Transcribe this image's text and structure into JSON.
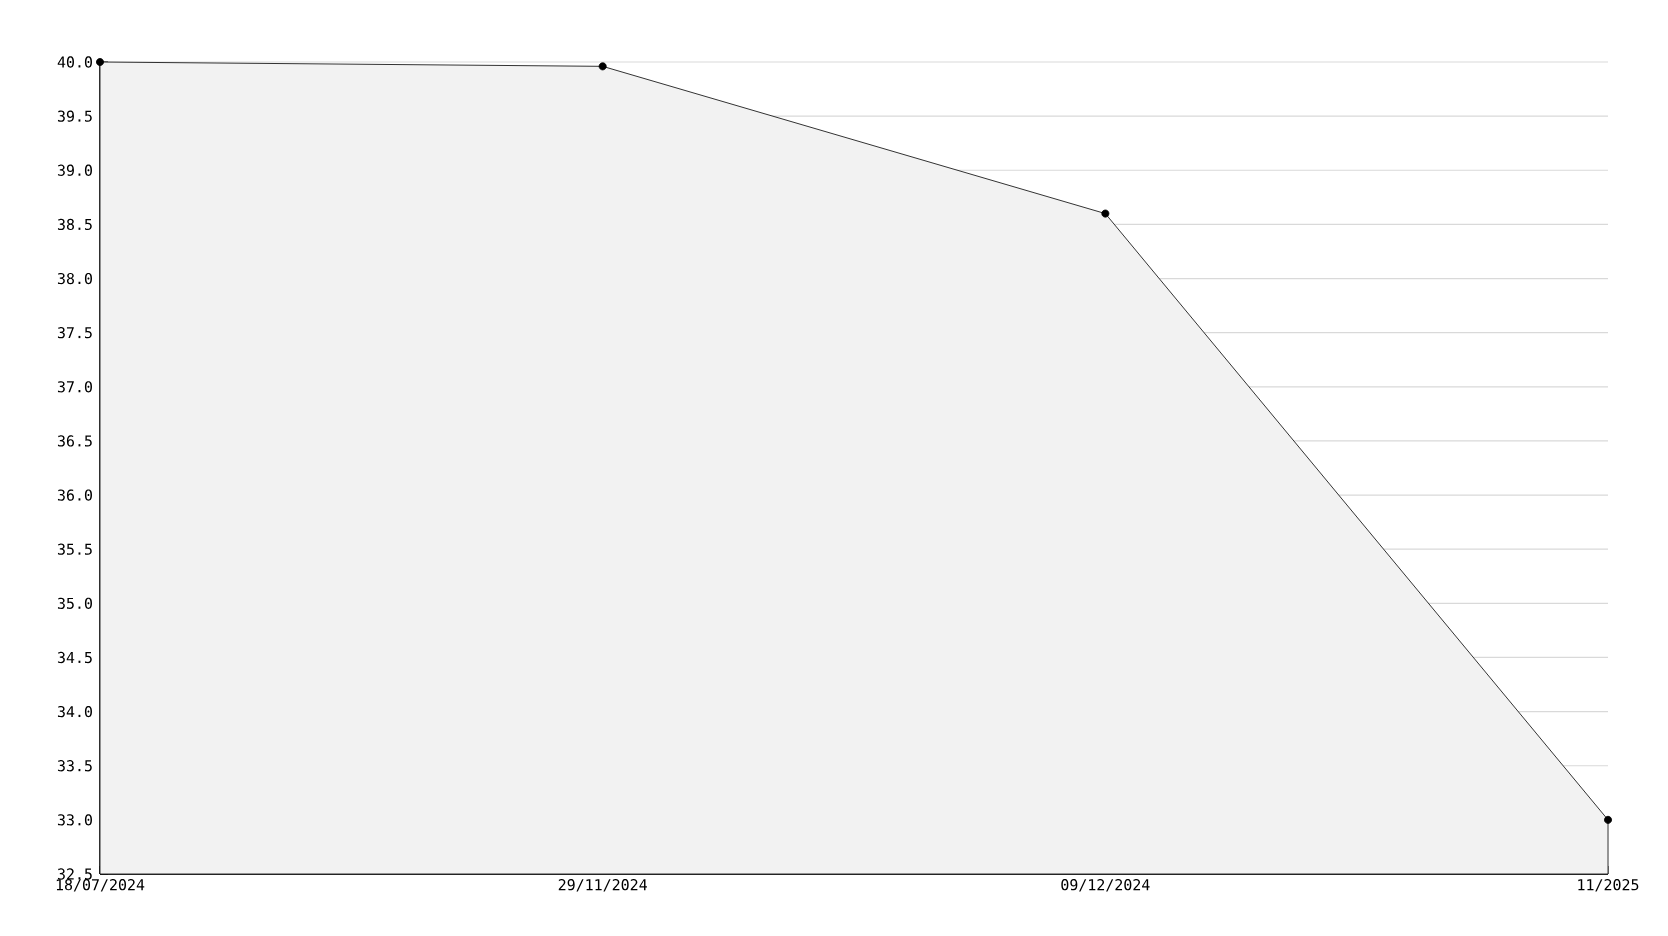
{
  "chart_data": {
    "type": "area",
    "categories": [
      "18/07/2024",
      "29/11/2024",
      "09/12/2024",
      "11/2025"
    ],
    "values": [
      40.0,
      39.96,
      38.6,
      33.0
    ],
    "color": "#000000",
    "ylim": [
      32.5,
      40.0
    ],
    "yticks": [
      32.5,
      {
        "value": 33,
        "label": "33.0"
      },
      33.5,
      {
        "value": 34,
        "label": "34.0"
      },
      34.5,
      {
        "value": 35,
        "label": "35.0"
      },
      35.5,
      {
        "value": 36,
        "label": "36.0"
      },
      36.5,
      {
        "value": 37,
        "label": "37.0"
      },
      37.5,
      {
        "value": 38,
        "label": "38.0"
      },
      38.5,
      {
        "value": 39,
        "label": "39.0"
      },
      39.5,
      {
        "value": 40,
        "label": "40.0"
      }
    ],
    "grid": "y",
    "marker": "circle"
  }
}
